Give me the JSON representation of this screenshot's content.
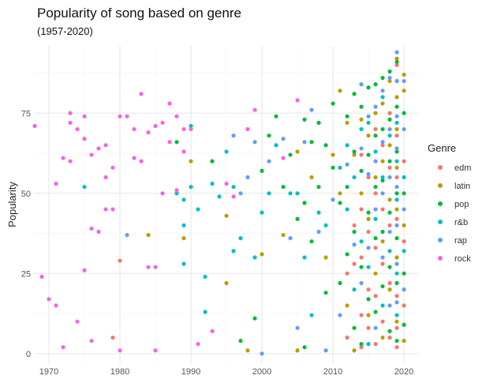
{
  "chart_data": {
    "type": "scatter",
    "title": "Popularity of song based on genre",
    "subtitle": "(1957-2020)",
    "xlabel": "",
    "ylabel": "Popularity",
    "xlim": [
      1968,
      2022
    ],
    "ylim": [
      -3,
      96
    ],
    "x_ticks": [
      1970,
      1980,
      1990,
      2000,
      2010,
      2020
    ],
    "y_ticks": [
      0,
      25,
      50,
      75
    ],
    "grid": true,
    "legend": {
      "title": "Genre",
      "position": "right"
    },
    "series": [
      {
        "name": "edm",
        "color": "#F8766D",
        "points": [
          [
            1979,
            5
          ],
          [
            1980,
            29
          ],
          [
            2012,
            25
          ],
          [
            2012,
            5
          ],
          [
            2013,
            40
          ],
          [
            2013,
            28
          ],
          [
            2014,
            62
          ],
          [
            2014,
            45
          ],
          [
            2014,
            30
          ],
          [
            2014,
            12
          ],
          [
            2014,
            2
          ],
          [
            2015,
            55
          ],
          [
            2015,
            38
          ],
          [
            2015,
            20
          ],
          [
            2015,
            8
          ],
          [
            2016,
            70
          ],
          [
            2016,
            50
          ],
          [
            2016,
            33
          ],
          [
            2016,
            18
          ],
          [
            2016,
            3
          ],
          [
            2017,
            65
          ],
          [
            2017,
            45
          ],
          [
            2017,
            28
          ],
          [
            2017,
            10
          ],
          [
            2018,
            75
          ],
          [
            2018,
            58
          ],
          [
            2018,
            40
          ],
          [
            2018,
            22
          ],
          [
            2018,
            5
          ],
          [
            2019,
            90
          ],
          [
            2019,
            80
          ],
          [
            2019,
            68
          ],
          [
            2019,
            55
          ],
          [
            2019,
            42
          ],
          [
            2019,
            30
          ],
          [
            2019,
            18
          ],
          [
            2019,
            8
          ],
          [
            2019,
            2
          ],
          [
            2020,
            60
          ],
          [
            2020,
            35
          ],
          [
            2020,
            15
          ]
        ]
      },
      {
        "name": "latin",
        "color": "#B79F00",
        "points": [
          [
            1984,
            37
          ],
          [
            1989,
            36
          ],
          [
            1990,
            60
          ],
          [
            1993,
            60
          ],
          [
            1995,
            43
          ],
          [
            1995,
            22
          ],
          [
            1998,
            1
          ],
          [
            2000,
            31
          ],
          [
            2003,
            37
          ],
          [
            2005,
            63
          ],
          [
            2005,
            1
          ],
          [
            2006,
            47
          ],
          [
            2007,
            55
          ],
          [
            2008,
            72
          ],
          [
            2009,
            30
          ],
          [
            2010,
            62
          ],
          [
            2011,
            82
          ],
          [
            2011,
            50
          ],
          [
            2012,
            72
          ],
          [
            2012,
            15
          ],
          [
            2013,
            62
          ],
          [
            2013,
            1
          ],
          [
            2014,
            73
          ],
          [
            2014,
            50
          ],
          [
            2015,
            68
          ],
          [
            2015,
            42
          ],
          [
            2015,
            12
          ],
          [
            2016,
            75
          ],
          [
            2016,
            55
          ],
          [
            2016,
            25
          ],
          [
            2017,
            78
          ],
          [
            2017,
            60
          ],
          [
            2017,
            35
          ],
          [
            2017,
            5
          ],
          [
            2018,
            85
          ],
          [
            2018,
            65
          ],
          [
            2018,
            48
          ],
          [
            2018,
            20
          ],
          [
            2019,
            92
          ],
          [
            2019,
            80
          ],
          [
            2019,
            70
          ],
          [
            2019,
            58
          ],
          [
            2019,
            45
          ],
          [
            2019,
            30
          ],
          [
            2019,
            10
          ],
          [
            2020,
            87
          ],
          [
            2020,
            82
          ],
          [
            2020,
            40
          ],
          [
            2020,
            4
          ]
        ]
      },
      {
        "name": "pop",
        "color": "#00BA38",
        "points": [
          [
            1988,
            66
          ],
          [
            1993,
            60
          ],
          [
            1997,
            4
          ],
          [
            1999,
            11
          ],
          [
            2000,
            57
          ],
          [
            2001,
            68
          ],
          [
            2002,
            74
          ],
          [
            2003,
            52
          ],
          [
            2004,
            62
          ],
          [
            2005,
            42
          ],
          [
            2006,
            73
          ],
          [
            2006,
            47
          ],
          [
            2006,
            2
          ],
          [
            2007,
            35
          ],
          [
            2007,
            66
          ],
          [
            2008,
            72
          ],
          [
            2008,
            52
          ],
          [
            2009,
            19
          ],
          [
            2009,
            65
          ],
          [
            2010,
            58
          ],
          [
            2010,
            78
          ],
          [
            2011,
            47
          ],
          [
            2011,
            22
          ],
          [
            2012,
            74
          ],
          [
            2012,
            52
          ],
          [
            2012,
            31
          ],
          [
            2013,
            81
          ],
          [
            2013,
            63
          ],
          [
            2013,
            38
          ],
          [
            2013,
            8
          ],
          [
            2014,
            77
          ],
          [
            2014,
            57
          ],
          [
            2014,
            27
          ],
          [
            2014,
            3
          ],
          [
            2015,
            83
          ],
          [
            2015,
            62
          ],
          [
            2015,
            44
          ],
          [
            2015,
            17
          ],
          [
            2016,
            84
          ],
          [
            2016,
            68
          ],
          [
            2016,
            52
          ],
          [
            2016,
            36
          ],
          [
            2016,
            13
          ],
          [
            2017,
            86
          ],
          [
            2017,
            70
          ],
          [
            2017,
            54
          ],
          [
            2017,
            38
          ],
          [
            2017,
            21
          ],
          [
            2018,
            88
          ],
          [
            2018,
            73
          ],
          [
            2018,
            60
          ],
          [
            2018,
            44
          ],
          [
            2018,
            27
          ],
          [
            2018,
            7
          ],
          [
            2019,
            91
          ],
          [
            2019,
            77
          ],
          [
            2019,
            63
          ],
          [
            2019,
            50
          ],
          [
            2019,
            36
          ],
          [
            2019,
            22
          ],
          [
            2019,
            4
          ],
          [
            2020,
            75
          ],
          [
            2020,
            50
          ],
          [
            2020,
            25
          ],
          [
            2020,
            9
          ]
        ]
      },
      {
        "name": "r&b",
        "color": "#00BFC4",
        "points": [
          [
            1975,
            52
          ],
          [
            1988,
            50
          ],
          [
            1989,
            48
          ],
          [
            1989,
            40
          ],
          [
            1989,
            28
          ],
          [
            1990,
            71
          ],
          [
            1990,
            52
          ],
          [
            1991,
            45
          ],
          [
            1992,
            24
          ],
          [
            1992,
            13
          ],
          [
            1993,
            53
          ],
          [
            1994,
            49
          ],
          [
            1995,
            63
          ],
          [
            1996,
            52
          ],
          [
            1996,
            32
          ],
          [
            1997,
            36
          ],
          [
            1999,
            30
          ],
          [
            2000,
            44
          ],
          [
            2001,
            50
          ],
          [
            2002,
            65
          ],
          [
            2004,
            50
          ],
          [
            2005,
            50
          ],
          [
            2006,
            30
          ],
          [
            2007,
            12
          ],
          [
            2008,
            44
          ],
          [
            2009,
            40
          ],
          [
            2011,
            58
          ],
          [
            2012,
            65
          ],
          [
            2012,
            45
          ],
          [
            2013,
            55
          ],
          [
            2013,
            20
          ],
          [
            2014,
            70
          ],
          [
            2014,
            35
          ],
          [
            2015,
            72
          ],
          [
            2015,
            27
          ],
          [
            2015,
            3
          ],
          [
            2016,
            63
          ],
          [
            2016,
            42
          ],
          [
            2017,
            80
          ],
          [
            2017,
            55
          ],
          [
            2017,
            15
          ],
          [
            2018,
            68
          ],
          [
            2018,
            32
          ],
          [
            2019,
            85
          ],
          [
            2019,
            72
          ],
          [
            2019,
            60
          ],
          [
            2019,
            48
          ],
          [
            2019,
            25
          ],
          [
            2019,
            12
          ],
          [
            2020,
            55
          ],
          [
            2020,
            32
          ]
        ]
      },
      {
        "name": "rap",
        "color": "#619CFF",
        "points": [
          [
            1981,
            37
          ],
          [
            1996,
            68
          ],
          [
            1997,
            50
          ],
          [
            1998,
            55
          ],
          [
            1999,
            66
          ],
          [
            2000,
            0
          ],
          [
            2001,
            60
          ],
          [
            2003,
            67
          ],
          [
            2004,
            36
          ],
          [
            2005,
            8
          ],
          [
            2006,
            66
          ],
          [
            2007,
            76
          ],
          [
            2008,
            38
          ],
          [
            2009,
            1
          ],
          [
            2010,
            48
          ],
          [
            2011,
            12
          ],
          [
            2012,
            59
          ],
          [
            2013,
            34
          ],
          [
            2014,
            84
          ],
          [
            2014,
            64
          ],
          [
            2014,
            22
          ],
          [
            2015,
            74
          ],
          [
            2015,
            56
          ],
          [
            2015,
            33
          ],
          [
            2016,
            77
          ],
          [
            2016,
            60
          ],
          [
            2016,
            45
          ],
          [
            2016,
            8
          ],
          [
            2017,
            82
          ],
          [
            2017,
            66
          ],
          [
            2017,
            50
          ],
          [
            2017,
            30
          ],
          [
            2018,
            86
          ],
          [
            2018,
            70
          ],
          [
            2018,
            55
          ],
          [
            2018,
            38
          ],
          [
            2018,
            15
          ],
          [
            2019,
            94
          ],
          [
            2019,
            85
          ],
          [
            2019,
            74
          ],
          [
            2019,
            64
          ],
          [
            2019,
            52
          ],
          [
            2019,
            40
          ],
          [
            2019,
            28
          ],
          [
            2019,
            16
          ],
          [
            2020,
            85
          ],
          [
            2020,
            70
          ],
          [
            2020,
            45
          ],
          [
            2020,
            20
          ]
        ]
      },
      {
        "name": "rock",
        "color": "#F564E3",
        "points": [
          [
            1968,
            71
          ],
          [
            1969,
            24
          ],
          [
            1970,
            17
          ],
          [
            1971,
            53
          ],
          [
            1971,
            15
          ],
          [
            1972,
            61
          ],
          [
            1972,
            2
          ],
          [
            1973,
            72
          ],
          [
            1973,
            60
          ],
          [
            1973,
            75
          ],
          [
            1974,
            70
          ],
          [
            1974,
            10
          ],
          [
            1975,
            74
          ],
          [
            1975,
            67
          ],
          [
            1975,
            26
          ],
          [
            1976,
            62
          ],
          [
            1976,
            39
          ],
          [
            1976,
            4
          ],
          [
            1977,
            64
          ],
          [
            1977,
            38
          ],
          [
            1978,
            65
          ],
          [
            1978,
            45
          ],
          [
            1978,
            55
          ],
          [
            1979,
            58
          ],
          [
            1979,
            45
          ],
          [
            1980,
            74
          ],
          [
            1980,
            1
          ],
          [
            1981,
            74
          ],
          [
            1982,
            70
          ],
          [
            1982,
            61
          ],
          [
            1983,
            81
          ],
          [
            1983,
            60
          ],
          [
            1984,
            27
          ],
          [
            1984,
            69
          ],
          [
            1985,
            71
          ],
          [
            1985,
            27
          ],
          [
            1985,
            1
          ],
          [
            1986,
            72
          ],
          [
            1986,
            50
          ],
          [
            1987,
            78
          ],
          [
            1987,
            66
          ],
          [
            1988,
            74
          ],
          [
            1988,
            51
          ],
          [
            1989,
            70
          ],
          [
            1989,
            63
          ],
          [
            1990,
            70
          ],
          [
            1991,
            3
          ],
          [
            1993,
            7
          ],
          [
            1995,
            53
          ],
          [
            1996,
            49
          ],
          [
            1998,
            70
          ],
          [
            1999,
            76
          ],
          [
            2003,
            61
          ],
          [
            2005,
            79
          ]
        ]
      }
    ]
  }
}
